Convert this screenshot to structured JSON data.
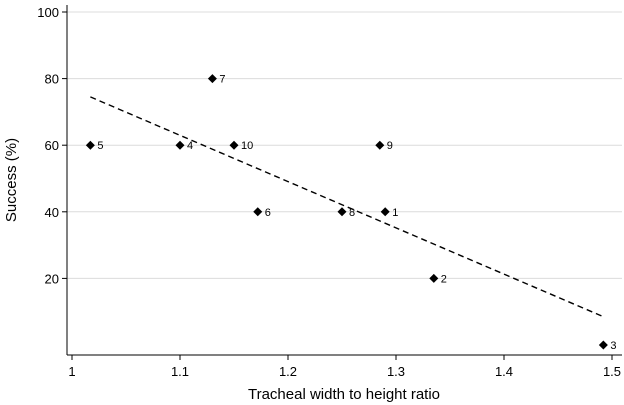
{
  "chart_data": {
    "type": "scatter",
    "title": "",
    "xlabel": "Tracheal width to height ratio",
    "ylabel": "Success (%)",
    "xlim": [
      1.0,
      1.5
    ],
    "ylim": [
      0,
      100
    ],
    "xticks": [
      1,
      1.1,
      1.2,
      1.3,
      1.4,
      1.5
    ],
    "xtick_labels": [
      "1",
      "1.1",
      "1.2",
      "1.3",
      "1.4",
      "1.5"
    ],
    "yticks": [
      20,
      40,
      60,
      80,
      100
    ],
    "ytick_labels": [
      "20",
      "40",
      "60",
      "80",
      "100"
    ],
    "grid": true,
    "points": [
      {
        "x": 1.017,
        "y": 60,
        "label": "5"
      },
      {
        "x": 1.1,
        "y": 60,
        "label": "4"
      },
      {
        "x": 1.13,
        "y": 80,
        "label": "7"
      },
      {
        "x": 1.15,
        "y": 60,
        "label": "10"
      },
      {
        "x": 1.172,
        "y": 40,
        "label": "6"
      },
      {
        "x": 1.25,
        "y": 40,
        "label": "8"
      },
      {
        "x": 1.285,
        "y": 60,
        "label": "9"
      },
      {
        "x": 1.29,
        "y": 40,
        "label": "1"
      },
      {
        "x": 1.335,
        "y": 20,
        "label": "2"
      },
      {
        "x": 1.492,
        "y": 0,
        "label": "3"
      }
    ],
    "fit_line": {
      "style": "dashed",
      "x": [
        1.017,
        1.492
      ],
      "y": [
        74.5,
        8.5
      ]
    }
  }
}
